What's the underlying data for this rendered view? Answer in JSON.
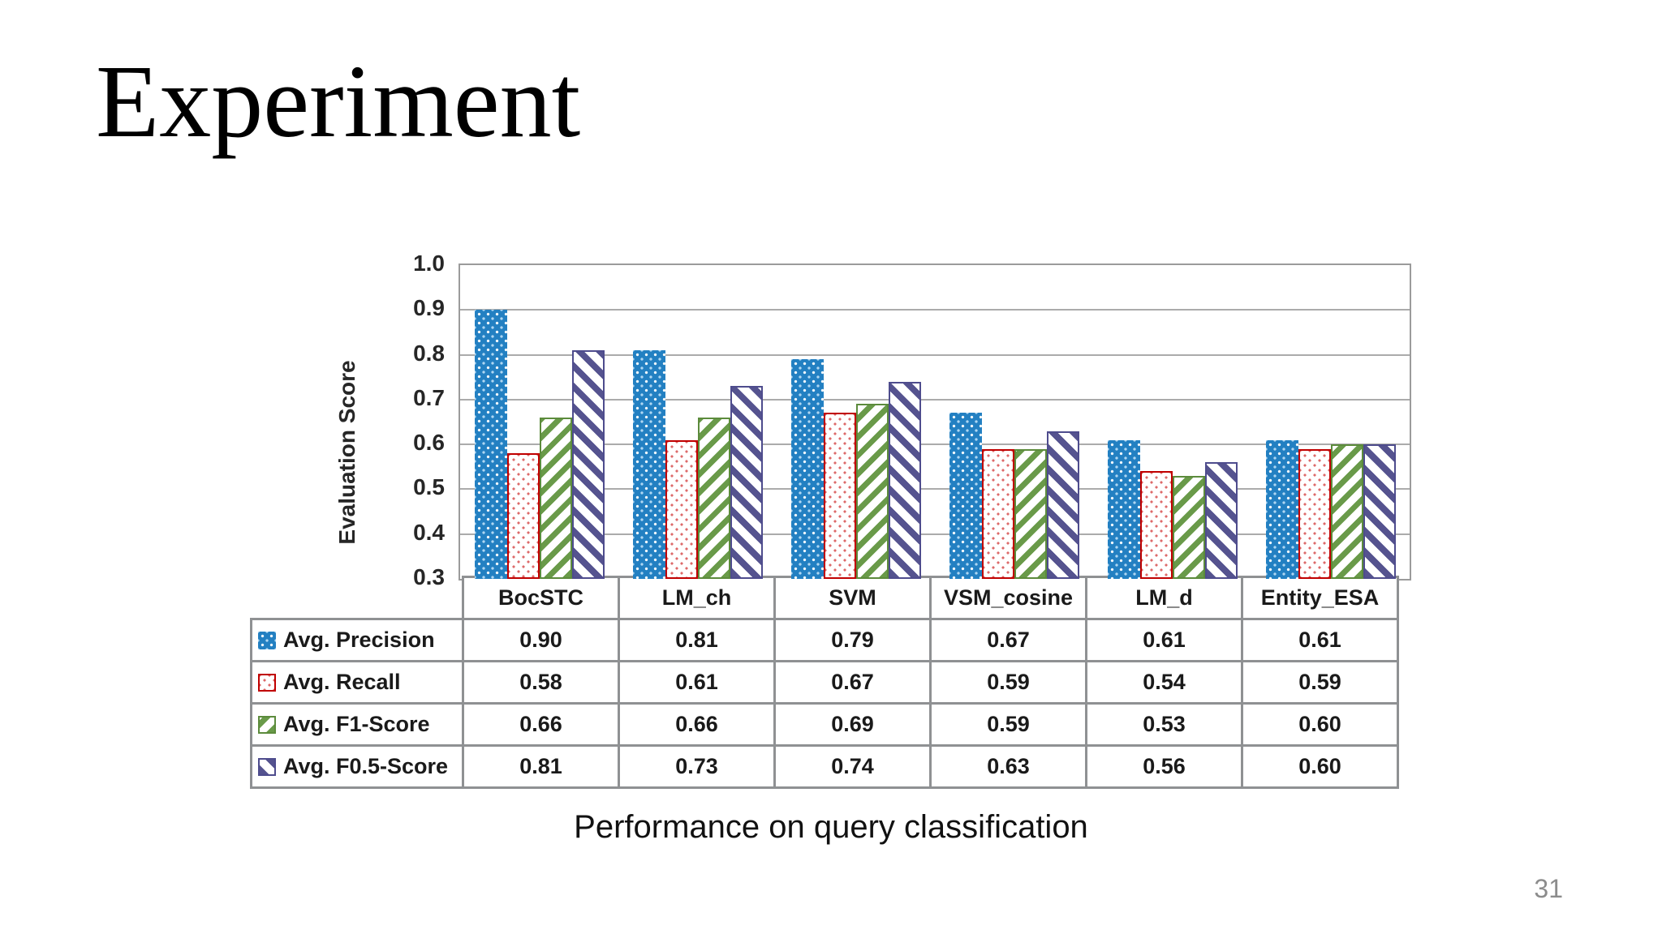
{
  "slide": {
    "title": "Experiment",
    "caption": "Performance on query classification",
    "page_number": "31"
  },
  "chart_data": {
    "type": "bar",
    "title": "",
    "xlabel": "",
    "ylabel": "Evaluation Score",
    "ylim": [
      0.3,
      1.0
    ],
    "yticks": [
      "1.0",
      "0.9",
      "0.8",
      "0.7",
      "0.6",
      "0.5",
      "0.4",
      "0.3"
    ],
    "grid": true,
    "legend_position": "table-left",
    "categories": [
      "BocSTC",
      "LM_ch",
      "SVM",
      "VSM_cosine",
      "LM_d",
      "Entity_ESA"
    ],
    "series": [
      {
        "name": "Avg. Precision",
        "pattern": "blue-dots",
        "color": "#2380c2",
        "values": [
          0.9,
          0.81,
          0.79,
          0.67,
          0.61,
          0.61
        ]
      },
      {
        "name": "Avg. Recall",
        "pattern": "red-dots",
        "color": "#c00000",
        "values": [
          0.58,
          0.61,
          0.67,
          0.59,
          0.54,
          0.59
        ]
      },
      {
        "name": "Avg. F1-Score",
        "pattern": "green-stripes",
        "color": "#5c8b3c",
        "values": [
          0.66,
          0.66,
          0.69,
          0.59,
          0.53,
          0.6
        ]
      },
      {
        "name": "Avg. F0.5-Score",
        "pattern": "purple-stripes",
        "color": "#4e4c8d",
        "values": [
          0.81,
          0.73,
          0.74,
          0.63,
          0.56,
          0.6
        ]
      }
    ]
  },
  "colors": {
    "gridline": "#ababab",
    "plot_border": "#9b9b9b",
    "table_border": "#8f9193",
    "page_number": "#8c8c8c"
  }
}
